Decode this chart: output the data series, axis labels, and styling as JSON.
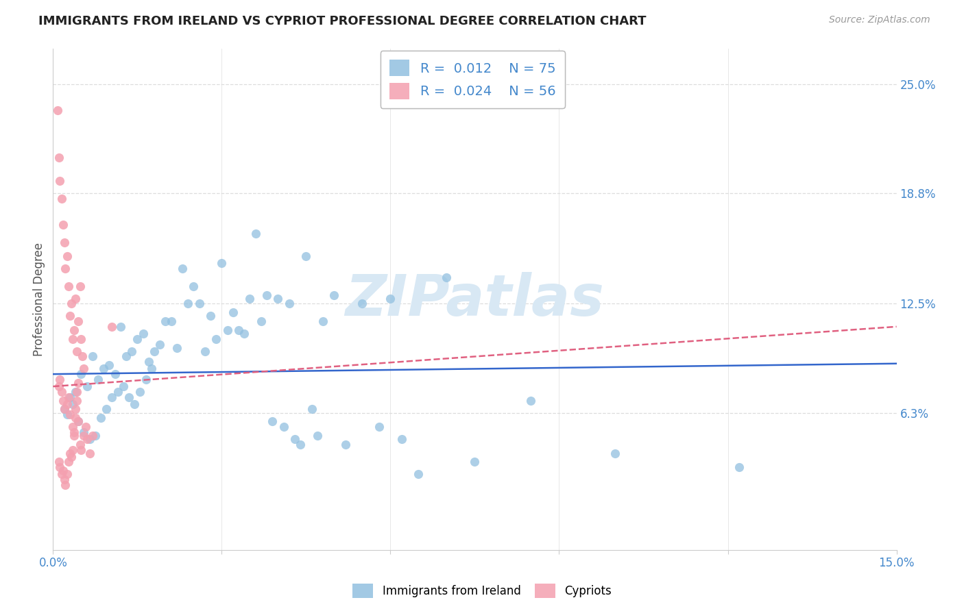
{
  "title": "IMMIGRANTS FROM IRELAND VS CYPRIOT PROFESSIONAL DEGREE CORRELATION CHART",
  "source": "Source: ZipAtlas.com",
  "ylabel": "Professional Degree",
  "xmin": 0.0,
  "xmax": 15.0,
  "ymin": -1.5,
  "ymax": 27.0,
  "yticks_right": [
    6.3,
    12.5,
    18.8,
    25.0
  ],
  "ytick_labels_right": [
    "6.3%",
    "12.5%",
    "18.8%",
    "25.0%"
  ],
  "xtick_positions": [
    0,
    3,
    6,
    9,
    12,
    15
  ],
  "blue_color": "#92C0E0",
  "pink_color": "#F4A0B0",
  "trend_blue_color": "#3366CC",
  "trend_pink_color": "#E06080",
  "axis_color": "#4488CC",
  "grid_color": "#DDDDDD",
  "background_color": "#FFFFFF",
  "r_blue": "0.012",
  "n_blue": "75",
  "r_pink": "0.024",
  "n_pink": "56",
  "label_blue": "Immigrants from Ireland",
  "label_pink": "Cypriots",
  "watermark": "ZIPatlas",
  "blue_x": [
    0.5,
    0.7,
    1.2,
    1.5,
    1.6,
    1.8,
    2.0,
    2.2,
    2.3,
    2.5,
    2.6,
    2.8,
    3.0,
    3.2,
    3.3,
    3.5,
    3.6,
    3.8,
    4.0,
    4.2,
    4.5,
    4.8,
    5.0,
    5.5,
    6.0,
    7.0,
    8.5,
    12.2,
    0.3,
    0.4,
    0.6,
    0.8,
    0.9,
    1.0,
    1.1,
    1.3,
    1.4,
    1.7,
    1.9,
    2.1,
    2.4,
    2.7,
    2.9,
    3.1,
    3.4,
    3.7,
    3.9,
    4.1,
    4.3,
    4.4,
    4.6,
    4.7,
    5.2,
    5.8,
    6.2,
    6.5,
    7.5,
    10.0,
    0.2,
    0.25,
    0.35,
    0.45,
    0.55,
    0.65,
    0.75,
    0.85,
    0.95,
    1.05,
    1.15,
    1.25,
    1.35,
    1.45,
    1.55,
    1.65,
    1.75
  ],
  "blue_y": [
    8.5,
    9.5,
    11.2,
    10.5,
    10.8,
    9.8,
    11.5,
    10.0,
    14.5,
    13.5,
    12.5,
    11.8,
    14.8,
    12.0,
    11.0,
    12.8,
    16.5,
    13.0,
    12.8,
    12.5,
    15.2,
    11.5,
    13.0,
    12.5,
    12.8,
    14.0,
    7.0,
    3.2,
    7.2,
    7.5,
    7.8,
    8.2,
    8.8,
    9.0,
    8.5,
    9.5,
    9.8,
    9.2,
    10.2,
    11.5,
    12.5,
    9.8,
    10.5,
    11.0,
    10.8,
    11.5,
    5.8,
    5.5,
    4.8,
    4.5,
    6.5,
    5.0,
    4.5,
    5.5,
    4.8,
    2.8,
    3.5,
    4.0,
    6.5,
    6.2,
    6.8,
    5.8,
    5.2,
    4.8,
    5.0,
    6.0,
    6.5,
    7.2,
    7.5,
    7.8,
    7.2,
    6.8,
    7.5,
    8.2,
    8.8
  ],
  "pink_x": [
    0.08,
    0.1,
    0.12,
    0.15,
    0.18,
    0.2,
    0.22,
    0.25,
    0.28,
    0.3,
    0.32,
    0.35,
    0.38,
    0.4,
    0.42,
    0.45,
    0.48,
    0.5,
    0.52,
    0.55,
    0.1,
    0.12,
    0.15,
    0.18,
    0.2,
    0.25,
    0.28,
    0.3,
    0.35,
    0.38,
    0.4,
    0.42,
    0.45,
    0.48,
    0.5,
    0.55,
    0.58,
    0.6,
    0.65,
    0.7,
    0.1,
    0.12,
    0.15,
    0.18,
    0.2,
    0.22,
    0.25,
    0.28,
    0.3,
    0.32,
    0.35,
    0.38,
    0.4,
    1.05,
    0.42,
    0.45
  ],
  "pink_y": [
    23.5,
    20.8,
    19.5,
    18.5,
    17.0,
    16.0,
    14.5,
    15.2,
    13.5,
    11.8,
    12.5,
    10.5,
    11.0,
    12.8,
    9.8,
    11.5,
    13.5,
    10.5,
    9.5,
    8.8,
    7.8,
    8.2,
    7.5,
    7.0,
    6.5,
    6.8,
    7.2,
    6.2,
    5.5,
    5.0,
    6.5,
    7.0,
    5.8,
    4.5,
    4.2,
    5.0,
    5.5,
    4.8,
    4.0,
    5.0,
    3.5,
    3.2,
    2.8,
    3.0,
    2.5,
    2.2,
    2.8,
    3.5,
    4.0,
    3.8,
    4.2,
    5.2,
    6.0,
    11.2,
    7.5,
    8.0
  ],
  "blue_trend_x0": 0.0,
  "blue_trend_x1": 15.0,
  "blue_trend_y0": 8.5,
  "blue_trend_y1": 9.1,
  "pink_trend_x0": 0.0,
  "pink_trend_x1": 15.0,
  "pink_trend_y0": 7.8,
  "pink_trend_y1": 11.2
}
